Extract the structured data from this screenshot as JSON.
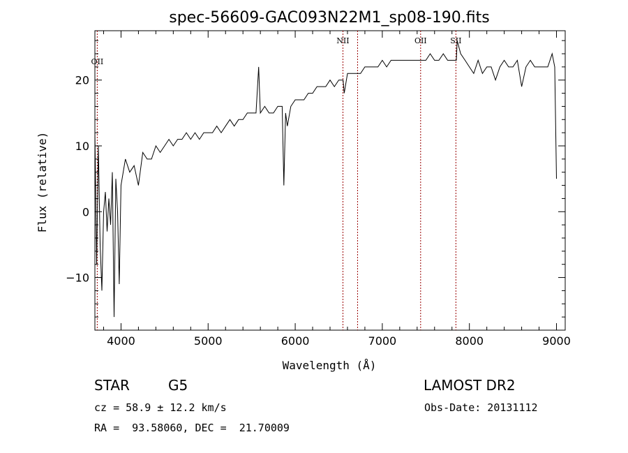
{
  "chart_data": {
    "type": "line",
    "title": "spec-56609-GAC093N22M1_sp08-190.fits",
    "xlabel": "Wavelength (Å)",
    "ylabel": "Flux (relative)",
    "xlim": [
      3700,
      9100
    ],
    "ylim": [
      -18,
      27.5
    ],
    "xticks": [
      4000,
      5000,
      6000,
      7000,
      8000,
      9000
    ],
    "yticks": [
      -10,
      0,
      10,
      20
    ],
    "grid": false,
    "legend": "none",
    "series": [
      {
        "x": [
          3700,
          3720,
          3740,
          3760,
          3780,
          3800,
          3820,
          3840,
          3860,
          3880,
          3900,
          3920,
          3940,
          3960,
          3980,
          4000,
          4050,
          4100,
          4150,
          4200,
          4250,
          4300,
          4350,
          4400,
          4450,
          4500,
          4550,
          4600,
          4650,
          4700,
          4750,
          4800,
          4850,
          4900,
          4950,
          5000,
          5050,
          5100,
          5150,
          5200,
          5250,
          5300,
          5350,
          5400,
          5450,
          5500,
          5550,
          5580,
          5600,
          5650,
          5700,
          5750,
          5800,
          5850,
          5870,
          5890,
          5910,
          5950,
          6000,
          6050,
          6100,
          6150,
          6200,
          6250,
          6300,
          6350,
          6400,
          6450,
          6500,
          6550,
          6563,
          6600,
          6650,
          6700,
          6750,
          6800,
          6850,
          6900,
          6950,
          7000,
          7050,
          7100,
          7150,
          7200,
          7250,
          7300,
          7350,
          7400,
          7450,
          7500,
          7550,
          7600,
          7650,
          7700,
          7750,
          7800,
          7850,
          7860,
          7900,
          7950,
          8000,
          8050,
          8100,
          8150,
          8200,
          8250,
          8300,
          8350,
          8400,
          8450,
          8500,
          8550,
          8600,
          8650,
          8700,
          8750,
          8800,
          8850,
          8900,
          8950,
          8980,
          9000
        ],
        "y": [
          12,
          -8,
          10,
          -5,
          -12,
          0,
          3,
          -3,
          2,
          -2,
          6,
          -16,
          5,
          0,
          -11,
          4,
          8,
          6,
          7,
          4,
          9,
          8,
          8,
          10,
          9,
          10,
          11,
          10,
          11,
          11,
          12,
          11,
          12,
          11,
          12,
          12,
          12,
          13,
          12,
          13,
          14,
          13,
          14,
          14,
          15,
          15,
          15,
          22,
          15,
          16,
          15,
          15,
          16,
          16,
          4,
          15,
          13,
          16,
          17,
          17,
          17,
          18,
          18,
          19,
          19,
          19,
          20,
          19,
          20,
          20,
          18,
          21,
          21,
          21,
          21,
          22,
          22,
          22,
          22,
          23,
          22,
          23,
          23,
          23,
          23,
          23,
          23,
          23,
          23,
          23,
          24,
          23,
          23,
          24,
          23,
          23,
          23,
          26,
          24,
          23,
          22,
          21,
          23,
          21,
          22,
          22,
          20,
          22,
          23,
          22,
          22,
          23,
          19,
          22,
          23,
          22,
          22,
          22,
          22,
          24,
          22,
          5
        ],
        "color": "#000000"
      }
    ],
    "line_markers": [
      {
        "label": "OII",
        "x": 3727
      },
      {
        "label": "NII",
        "x": 6548
      },
      {
        "label": "",
        "x": 6716
      },
      {
        "label": "OII",
        "x": 7440
      },
      {
        "label": "SII",
        "x": 7845
      }
    ],
    "marker_color": "#990000"
  },
  "info": {
    "class_label": "STAR",
    "subclass": "G5",
    "survey": "LAMOST DR2",
    "cz": "cz = 58.9 ± 12.2 km/s",
    "obs_date": "Obs-Date: 20131112",
    "coords": "RA =  93.58060, DEC =  21.70009"
  }
}
